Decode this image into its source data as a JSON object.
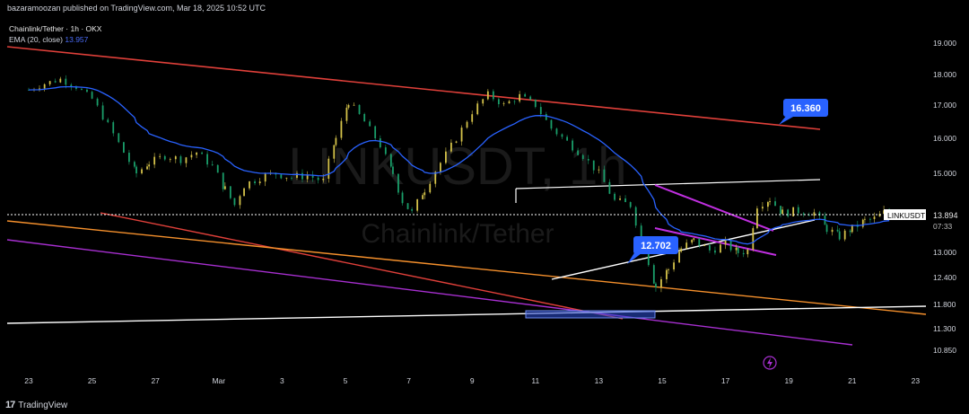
{
  "header": {
    "published_text": "bazaramoozan published on TradingView.com, Mar 18, 2025 10:52 UTC"
  },
  "legend": {
    "symbol_line": "Chainlink/Tether · 1h · OKX",
    "ema_label": "EMA (20, close)",
    "ema_value": "13.957"
  },
  "watermark": {
    "ticker": "LINKUSDT, 1h",
    "name": "Chainlink/Tether"
  },
  "footer": {
    "brand": "TradingView"
  },
  "colors": {
    "bg": "#000000",
    "up": "#d4c24a",
    "down": "#1a9e6a",
    "ema": "#2962ff",
    "red": "#e0403a",
    "orange": "#f5902c",
    "purple": "#a72fd0",
    "white": "#ffffff",
    "label": "#2962ff"
  },
  "chart_data": {
    "type": "candlestick",
    "symbol": "LINKUSDT",
    "timeframe": "1h",
    "x_ticks": [
      "23",
      "25",
      "27",
      "Mar",
      "3",
      "5",
      "7",
      "9",
      "11",
      "13",
      "15",
      "17",
      "19",
      "21",
      "23"
    ],
    "y_ticks": [
      "19.000",
      "18.000",
      "17.000",
      "16.000",
      "15.000",
      "14.000",
      "13.000",
      "12.400",
      "11.800",
      "11.300",
      "10.850"
    ],
    "last_price": {
      "ticker": "LINKUSDT",
      "price": "13.894",
      "countdown": "07:33"
    },
    "annotations": [
      {
        "name": "target-label",
        "text": "16.360",
        "price": 16.36
      },
      {
        "name": "low-label",
        "text": "12.702",
        "price": 12.702
      }
    ],
    "price_path": [
      [
        22.0,
        17.5
      ],
      [
        22.5,
        17.7
      ],
      [
        23.0,
        17.85
      ],
      [
        23.5,
        17.6
      ],
      [
        24.0,
        17.2
      ],
      [
        24.5,
        16.4
      ],
      [
        25.0,
        15.6
      ],
      [
        25.4,
        15.0
      ],
      [
        25.8,
        15.3
      ],
      [
        26.3,
        15.5
      ],
      [
        26.8,
        15.4
      ],
      [
        27.3,
        15.6
      ],
      [
        27.8,
        15.2
      ],
      [
        28.2,
        14.6
      ],
      [
        28.5,
        14.2
      ],
      [
        28.8,
        14.7
      ],
      [
        29.3,
        14.9
      ],
      [
        29.8,
        15.0
      ],
      [
        30.3,
        14.9
      ],
      [
        30.8,
        14.95
      ],
      [
        31.3,
        14.8
      ],
      [
        31.7,
        16.0
      ],
      [
        32.1,
        17.1
      ],
      [
        32.6,
        16.5
      ],
      [
        33.1,
        15.8
      ],
      [
        33.5,
        15.0
      ],
      [
        33.8,
        14.3
      ],
      [
        34.1,
        14.0
      ],
      [
        34.5,
        14.6
      ],
      [
        35.0,
        15.3
      ],
      [
        35.5,
        16.0
      ],
      [
        36.0,
        16.8
      ],
      [
        36.5,
        17.35
      ],
      [
        37.0,
        17.0
      ],
      [
        37.5,
        17.3
      ],
      [
        38.0,
        17.0
      ],
      [
        38.5,
        16.3
      ],
      [
        39.0,
        15.9
      ],
      [
        39.5,
        15.5
      ],
      [
        40.0,
        15.0
      ],
      [
        40.5,
        14.3
      ],
      [
        41.0,
        14.2
      ],
      [
        41.4,
        13.2
      ],
      [
        41.8,
        12.2
      ],
      [
        42.2,
        12.6
      ],
      [
        42.6,
        13.1
      ],
      [
        43.0,
        13.3
      ],
      [
        43.5,
        13.05
      ],
      [
        44.0,
        13.2
      ],
      [
        44.4,
        13.0
      ],
      [
        44.7,
        13.05
      ],
      [
        45.0,
        14.2
      ],
      [
        45.4,
        14.35
      ],
      [
        45.8,
        14.0
      ],
      [
        46.3,
        14.05
      ],
      [
        46.8,
        14.0
      ],
      [
        47.2,
        13.6
      ],
      [
        47.6,
        13.4
      ],
      [
        48.0,
        13.6
      ],
      [
        48.4,
        13.8
      ],
      [
        48.7,
        13.85
      ],
      [
        49.0,
        14.0
      ],
      [
        49.3,
        13.9
      ]
    ]
  }
}
